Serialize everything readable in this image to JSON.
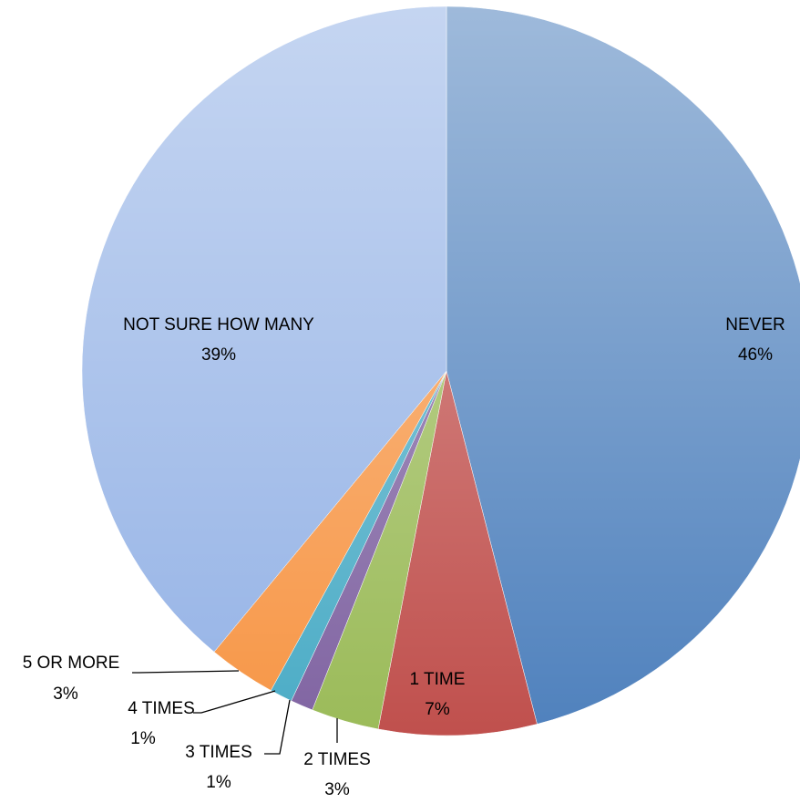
{
  "chart_data": {
    "type": "pie",
    "categories": [
      "NEVER",
      "1 TIME",
      "2 TIMES",
      "3 TIMES",
      "4 TIMES",
      "5 OR MORE",
      "NOT SURE HOW MANY"
    ],
    "values": [
      46,
      7,
      3,
      1,
      1,
      3,
      39
    ],
    "value_labels": [
      "46%",
      "7%",
      "3%",
      "1%",
      "1%",
      "3%",
      "39%"
    ],
    "colors": [
      "#4f81bd",
      "#c0504d",
      "#9bbb59",
      "#8064a2",
      "#4bacc6",
      "#f79646",
      "#95b3e6"
    ]
  }
}
